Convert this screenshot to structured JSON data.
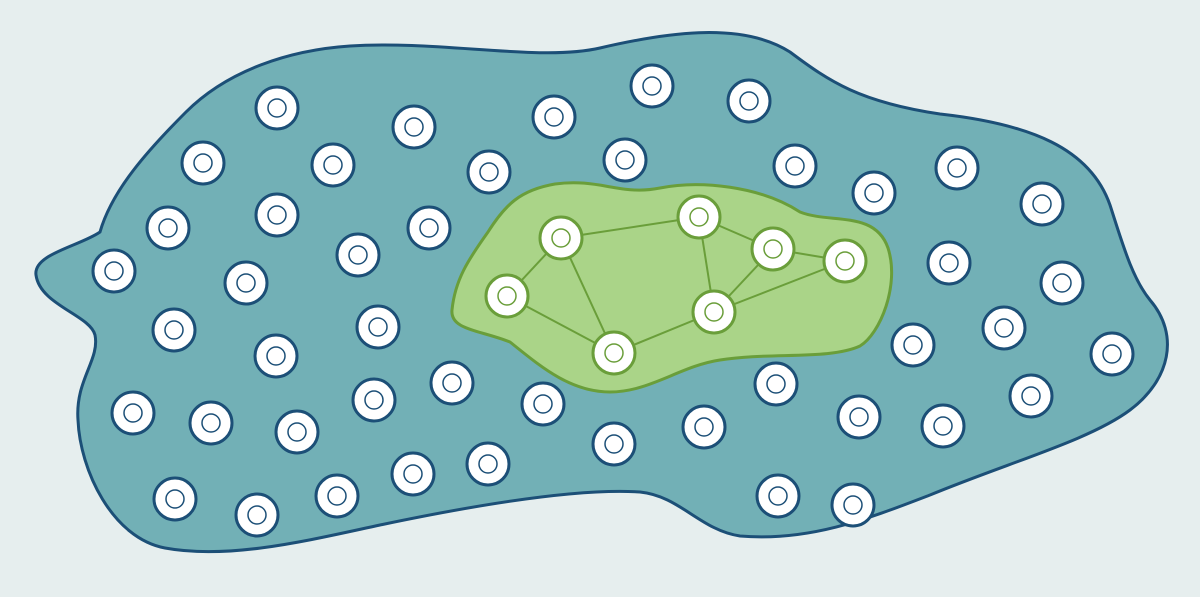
{
  "colors": {
    "background": "#e6eeee",
    "outer_region_fill": "#72b0b6",
    "outer_region_stroke": "#1c4f77",
    "node_fill": "#ffffff",
    "node_stroke": "#1c4f77",
    "cluster_fill": "#aad488",
    "cluster_stroke": "#6a9e3a",
    "cluster_node_stroke": "#6a9e3a"
  },
  "legend": [],
  "diagram": {
    "outer_node_count": 51,
    "cluster_node_count": 8,
    "cluster_edge_count": 11,
    "cluster_foreign_node_count": 2
  }
}
